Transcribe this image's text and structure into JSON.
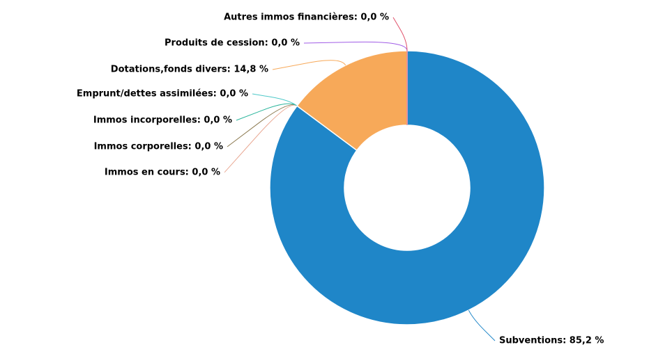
{
  "chart_data": {
    "type": "donut",
    "categories": [
      "Subventions",
      "Immos en cours",
      "Immos corporelles",
      "Immos incorporelles",
      "Emprunt/dettes assimilées",
      "Dotations,fonds divers",
      "Produits de cession",
      "Autres immos financières"
    ],
    "values": [
      85.2,
      0.0,
      0.0,
      0.0,
      0.0,
      14.8,
      0.0,
      0.0
    ],
    "value_labels": [
      "Subventions: 85,2 %",
      "Immos en cours: 0,0 %",
      "Immos corporelles: 0,0 %",
      "Immos incorporelles: 0,0 %",
      "Emprunt/dettes assimilées: 0,0 %",
      "Dotations,fonds divers: 14,8 %",
      "Produits de cession: 0,0 %",
      "Autres immos financières: 0,0 %"
    ],
    "colors": [
      "#1f86c8",
      "#e8a58f",
      "#8c7a50",
      "#2bb59c",
      "#4cc8c8",
      "#f7a959",
      "#a05ce6",
      "#e0506a"
    ]
  }
}
